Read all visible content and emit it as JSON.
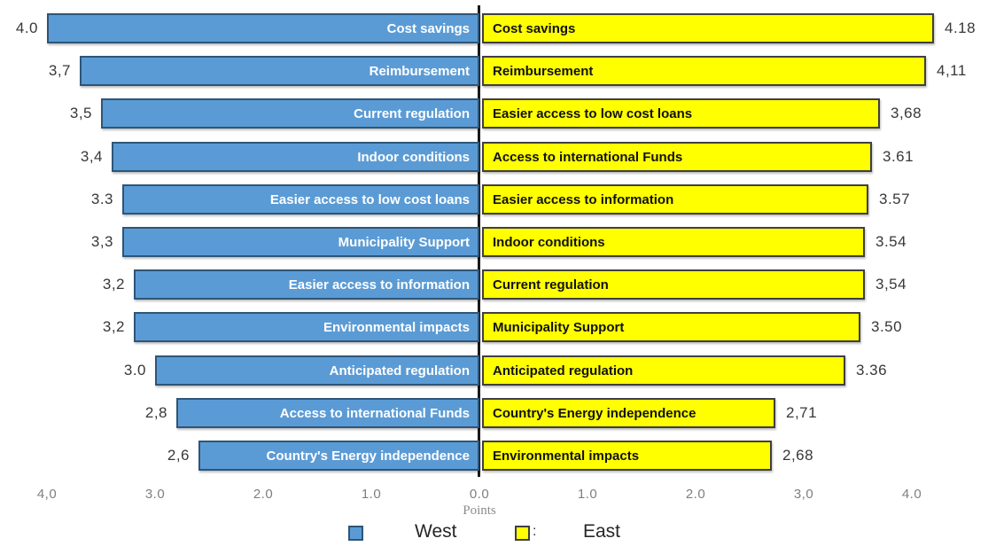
{
  "chart_data": {
    "type": "bar",
    "layout": "diverging-tornado",
    "title": "",
    "xlabel": "Points",
    "ylabel": "",
    "grid": false,
    "legend_position": "bottom-center",
    "axis_range_each_side": [
      0,
      4.4
    ],
    "series": [
      {
        "name": "West",
        "side": "left",
        "color": "#5B9BD5",
        "border_color": "#2E5577",
        "categories": [
          "Cost savings",
          "Reimbursement",
          "Current regulation",
          "Indoor conditions",
          "Easier access to low cost loans",
          "Municipality Support",
          "Easier access to information",
          "Environmental impacts",
          "Anticipated regulation",
          "Access to international Funds",
          "Country's Energy independence"
        ],
        "values": [
          4.0,
          3.7,
          3.5,
          3.4,
          3.3,
          3.3,
          3.2,
          3.2,
          3.0,
          2.8,
          2.6
        ]
      },
      {
        "name": "East",
        "side": "right",
        "color": "#FFFF00",
        "border_color": "#3F3F3F",
        "categories": [
          "Cost savings",
          "Reimbursement",
          "Easier access to low cost loans",
          "Access to international Funds",
          "Easier access to information",
          "Indoor conditions",
          "Current regulation",
          "Municipality Support",
          "Anticipated regulation",
          "Country's Energy independence",
          "Environmental impacts"
        ],
        "values": [
          4.18,
          4.11,
          3.68,
          3.61,
          3.57,
          3.54,
          3.54,
          3.5,
          3.36,
          2.71,
          2.68
        ]
      }
    ],
    "rows": [
      {
        "west_label": "Cost savings",
        "west_value": 4.0,
        "west_display": "4.0",
        "east_label": "Cost savings",
        "east_value": 4.18,
        "east_display": "4.18"
      },
      {
        "west_label": "Reimbursement",
        "west_value": 3.7,
        "west_display": "3,7",
        "east_label": "Reimbursement",
        "east_value": 4.11,
        "east_display": "4,11"
      },
      {
        "west_label": "Current regulation",
        "west_value": 3.5,
        "west_display": "3,5",
        "east_label": "Easier access to low cost loans",
        "east_value": 3.68,
        "east_display": "3,68"
      },
      {
        "west_label": "Indoor conditions",
        "west_value": 3.4,
        "west_display": "3,4",
        "east_label": "Access to international Funds",
        "east_value": 3.61,
        "east_display": "3.61"
      },
      {
        "west_label": "Easier access to low cost loans",
        "west_value": 3.3,
        "west_display": "3.3",
        "east_label": "Easier access to information",
        "east_value": 3.57,
        "east_display": "3.57"
      },
      {
        "west_label": "Municipality Support",
        "west_value": 3.3,
        "west_display": "3,3",
        "east_label": "Indoor conditions",
        "east_value": 3.54,
        "east_display": "3.54"
      },
      {
        "west_label": "Easier access to information",
        "west_value": 3.2,
        "west_display": "3,2",
        "east_label": "Current regulation",
        "east_value": 3.54,
        "east_display": "3,54"
      },
      {
        "west_label": "Environmental impacts",
        "west_value": 3.2,
        "west_display": "3,2",
        "east_label": "Municipality Support",
        "east_value": 3.5,
        "east_display": "3.50"
      },
      {
        "west_label": "Anticipated regulation",
        "west_value": 3.0,
        "west_display": "3.0",
        "east_label": "Anticipated regulation",
        "east_value": 3.36,
        "east_display": "3.36"
      },
      {
        "west_label": "Access to international Funds",
        "west_value": 2.8,
        "west_display": "2,8",
        "east_label": "Country's Energy independence",
        "east_value": 2.71,
        "east_display": "2,71"
      },
      {
        "west_label": "Country's Energy independence",
        "west_value": 2.6,
        "west_display": "2,6",
        "east_label": "Environmental impacts",
        "east_value": 2.68,
        "east_display": "2,68"
      }
    ],
    "x_ticks": [
      {
        "u": -4,
        "label": "4,0"
      },
      {
        "u": -3,
        "label": "3.0"
      },
      {
        "u": -2,
        "label": "2.0"
      },
      {
        "u": -1,
        "label": "1.0"
      },
      {
        "u": 0,
        "label": "0.0"
      },
      {
        "u": 1,
        "label": "1.0"
      },
      {
        "u": 2,
        "label": "2.0"
      },
      {
        "u": 3,
        "label": "3,0"
      },
      {
        "u": 4,
        "label": "4.0"
      }
    ],
    "axis_label": "Points",
    "legend": {
      "west_label": "West",
      "east_label": "East",
      "separator": ":"
    }
  },
  "colors": {
    "west_fill": "#5B9BD5",
    "west_border": "#2E5577",
    "east_fill": "#FFFF00",
    "east_border": "#3F3F3F",
    "axis_line": "#1A1A1A",
    "tick_text": "#7F7F7F",
    "value_text": "#383838"
  }
}
